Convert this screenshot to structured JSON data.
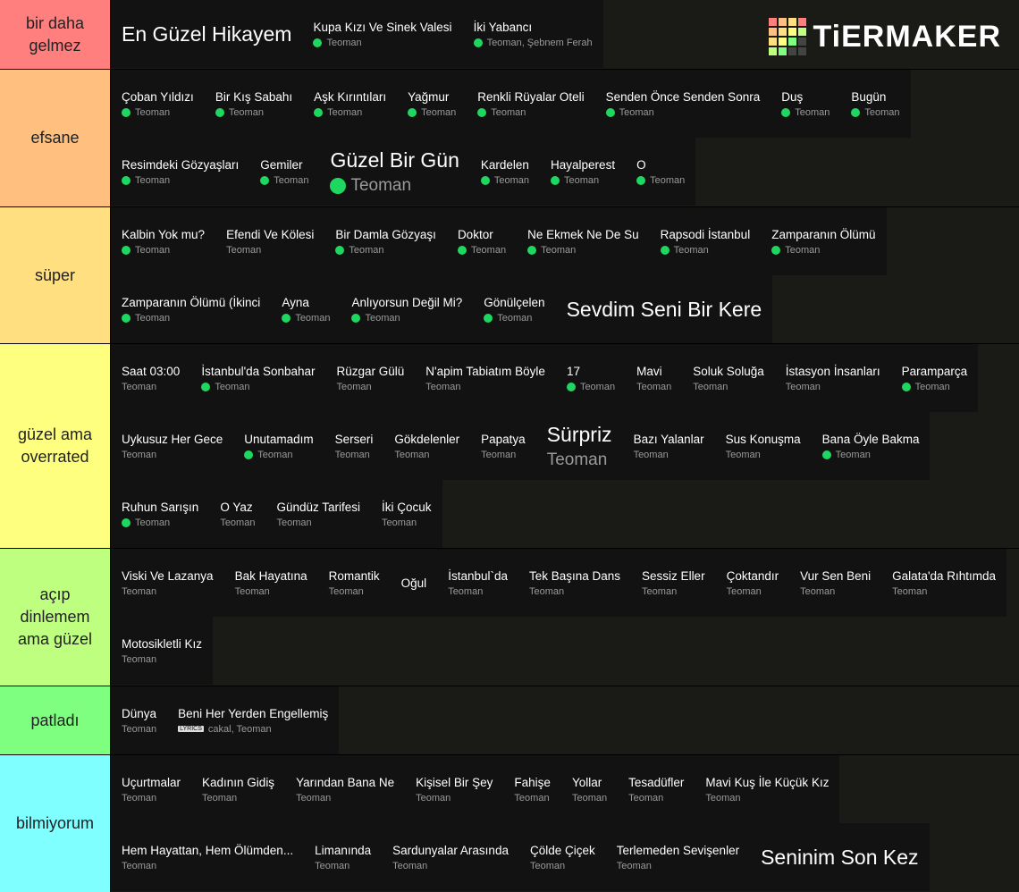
{
  "logo": "TiERMAKER",
  "tiers": [
    {
      "label": "bir daha gelmez",
      "color": "#ff7f7f",
      "items": [
        {
          "title": "En Güzel Hikayem",
          "big": true
        },
        {
          "title": "Kupa Kızı Ve Sinek Valesi",
          "artist": "Teoman",
          "downloaded": true
        },
        {
          "title": "İki Yabancı",
          "artist": "Teoman, Şebnem Ferah",
          "downloaded": true
        }
      ]
    },
    {
      "label": "efsane",
      "color": "#ffbf7f",
      "items": [
        {
          "title": "Çoban Yıldızı",
          "artist": "Teoman",
          "downloaded": true
        },
        {
          "title": "Bir Kış Sabahı",
          "artist": "Teoman",
          "downloaded": true
        },
        {
          "title": "Aşk Kırıntıları",
          "artist": "Teoman",
          "downloaded": true
        },
        {
          "title": "Yağmur",
          "artist": "Teoman",
          "downloaded": true
        },
        {
          "title": "Renkli Rüyalar Oteli",
          "artist": "Teoman",
          "downloaded": true
        },
        {
          "title": "Senden Önce Senden Sonra",
          "artist": "Teoman",
          "downloaded": true
        },
        {
          "title": "Duş",
          "artist": "Teoman",
          "downloaded": true
        },
        {
          "title": "Bugün",
          "artist": "Teoman",
          "downloaded": true
        },
        {
          "title": "Resimdeki Gözyaşları",
          "artist": "Teoman",
          "downloaded": true
        },
        {
          "title": "Gemiler",
          "artist": "Teoman",
          "downloaded": true
        },
        {
          "title": "Güzel Bir Gün",
          "artist": "Teoman",
          "downloaded": true,
          "big": true
        },
        {
          "title": "Kardelen",
          "artist": "Teoman",
          "downloaded": true
        },
        {
          "title": "Hayalperest",
          "artist": "Teoman",
          "downloaded": true
        },
        {
          "title": "O",
          "artist": "Teoman",
          "downloaded": true
        }
      ]
    },
    {
      "label": "süper",
      "color": "#ffdf7f",
      "items": [
        {
          "title": "Kalbin Yok mu?",
          "artist": "Teoman",
          "downloaded": true
        },
        {
          "title": "Efendi Ve Kölesi",
          "artist": "Teoman"
        },
        {
          "title": "Bir Damla Gözyaşı",
          "artist": "Teoman",
          "downloaded": true
        },
        {
          "title": "Doktor",
          "artist": "Teoman",
          "downloaded": true
        },
        {
          "title": "Ne Ekmek Ne De Su",
          "artist": "Teoman",
          "downloaded": true
        },
        {
          "title": "Rapsodi İstanbul",
          "artist": "Teoman",
          "downloaded": true
        },
        {
          "title": "Zamparanın Ölümü",
          "artist": "Teoman",
          "downloaded": true
        },
        {
          "title": "Zamparanın Ölümü (İkinci",
          "artist": "Teoman",
          "downloaded": true
        },
        {
          "title": "Ayna",
          "artist": "Teoman",
          "downloaded": true
        },
        {
          "title": "Anlıyorsun Değil Mi?",
          "artist": "Teoman",
          "downloaded": true
        },
        {
          "title": "Gönülçelen",
          "artist": "Teoman",
          "downloaded": true
        },
        {
          "title": "Sevdim Seni Bir Kere",
          "big": true
        }
      ]
    },
    {
      "label": "güzel ama overrated",
      "color": "#ffff7f",
      "items": [
        {
          "title": "Saat 03:00",
          "artist": "Teoman"
        },
        {
          "title": "İstanbul'da Sonbahar",
          "artist": "Teoman",
          "downloaded": true
        },
        {
          "title": "Rüzgar Gülü",
          "artist": "Teoman"
        },
        {
          "title": "N'apim Tabiatım Böyle",
          "artist": "Teoman"
        },
        {
          "title": "17",
          "artist": "Teoman",
          "downloaded": true
        },
        {
          "title": "Mavi",
          "artist": "Teoman"
        },
        {
          "title": "Soluk Soluğa",
          "artist": "Teoman"
        },
        {
          "title": "İstasyon İnsanları",
          "artist": "Teoman"
        },
        {
          "title": "Paramparça",
          "artist": "Teoman",
          "downloaded": true
        },
        {
          "title": "Uykusuz Her Gece",
          "artist": "Teoman"
        },
        {
          "title": "Unutamadım",
          "artist": "Teoman",
          "downloaded": true
        },
        {
          "title": "Serseri",
          "artist": "Teoman"
        },
        {
          "title": "Gökdelenler",
          "artist": "Teoman"
        },
        {
          "title": "Papatya",
          "artist": "Teoman"
        },
        {
          "title": "Sürpriz",
          "artist": "Teoman",
          "big": true
        },
        {
          "title": "Bazı Yalanlar",
          "artist": "Teoman"
        },
        {
          "title": "Sus Konuşma",
          "artist": "Teoman"
        },
        {
          "title": "Bana Öyle Bakma",
          "artist": "Teoman",
          "downloaded": true
        },
        {
          "title": "Ruhun Sarışın",
          "artist": "Teoman",
          "downloaded": true
        },
        {
          "title": "O Yaz",
          "artist": "Teoman"
        },
        {
          "title": "Gündüz Tarifesi",
          "artist": "Teoman"
        },
        {
          "title": "İki Çocuk",
          "artist": "Teoman"
        }
      ]
    },
    {
      "label": "açıp dinlemem ama güzel",
      "color": "#bfff7f",
      "items": [
        {
          "title": "Viski Ve Lazanya",
          "artist": "Teoman"
        },
        {
          "title": "Bak Hayatına",
          "artist": "Teoman"
        },
        {
          "title": "Romantik",
          "artist": "Teoman"
        },
        {
          "title": "Oğul"
        },
        {
          "title": "İstanbul`da",
          "artist": "Teoman"
        },
        {
          "title": "Tek Başına Dans",
          "artist": "Teoman"
        },
        {
          "title": "Sessiz Eller",
          "artist": "Teoman"
        },
        {
          "title": "Çoktandır",
          "artist": "Teoman"
        },
        {
          "title": "Vur Sen Beni",
          "artist": "Teoman"
        },
        {
          "title": "Galata'da Rıhtımda",
          "artist": "Teoman"
        },
        {
          "title": "Motosikletli Kız",
          "artist": "Teoman"
        }
      ]
    },
    {
      "label": "patladı",
      "color": "#7fff7f",
      "items": [
        {
          "title": "Dünya",
          "artist": "Teoman"
        },
        {
          "title": "Beni Her Yerden Engellemiş",
          "artist": "cakal, Teoman",
          "badge": "LYRICS"
        }
      ]
    },
    {
      "label": "bilmiyorum",
      "color": "#7fffff",
      "items": [
        {
          "title": "Uçurtmalar",
          "artist": "Teoman"
        },
        {
          "title": "Kadının Gidiş",
          "artist": "Teoman"
        },
        {
          "title": "Yarından Bana Ne",
          "artist": "Teoman"
        },
        {
          "title": "Kişisel Bir Şey",
          "artist": "Teoman"
        },
        {
          "title": "Fahişe",
          "artist": "Teoman"
        },
        {
          "title": "Yollar",
          "artist": "Teoman"
        },
        {
          "title": "Tesadüfler",
          "artist": "Teoman"
        },
        {
          "title": "Mavi Kuş İle Küçük Kız",
          "artist": "Teoman"
        },
        {
          "title": "Hem Hayattan, Hem Ölümden...",
          "artist": "Teoman"
        },
        {
          "title": "Limanında",
          "artist": "Teoman"
        },
        {
          "title": "Sardunyalar Arasında",
          "artist": "Teoman"
        },
        {
          "title": "Çölde Çiçek",
          "artist": "Teoman"
        },
        {
          "title": "Terlemeden Sevişenler",
          "artist": "Teoman"
        },
        {
          "title": "Seninim Son Kez",
          "big": true
        }
      ]
    }
  ]
}
